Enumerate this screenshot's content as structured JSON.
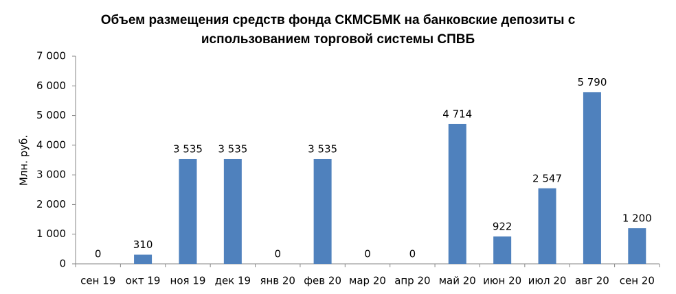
{
  "chart_data": {
    "type": "bar",
    "title": [
      "Объем размещения средств фонда СКМСБМК на банковские депозиты с",
      "использованием торговой системы СПВБ"
    ],
    "y_label": "Млн. руб.",
    "categories": [
      "сен 19",
      "окт 19",
      "ноя 19",
      "дек 19",
      "янв 20",
      "фев 20",
      "мар 20",
      "апр 20",
      "май 20",
      "июн 20",
      "июл 20",
      "авг 20",
      "сен 20"
    ],
    "values": [
      0,
      310,
      3535,
      3535,
      0,
      3535,
      0,
      0,
      4714,
      922,
      2547,
      5790,
      1200
    ],
    "value_labels": [
      "0",
      "310",
      "3 535",
      "3 535",
      "0",
      "3 535",
      "0",
      "0",
      "4 714",
      "922",
      "2 547",
      "5 790",
      "1 200"
    ],
    "color": "#4f81bd",
    "ylim": [
      0,
      7000
    ],
    "yticks": [
      0,
      {
        "value": 1000,
        "label": "1 000"
      },
      {
        "value": 2000,
        "label": "2 000"
      },
      {
        "value": 3000,
        "label": "3 000"
      },
      {
        "value": 4000,
        "label": "4 000"
      },
      {
        "value": 5000,
        "label": "5 000"
      },
      {
        "value": 6000,
        "label": "6 000"
      },
      {
        "value": 7000,
        "label": "7 000"
      }
    ],
    "grid": false
  }
}
